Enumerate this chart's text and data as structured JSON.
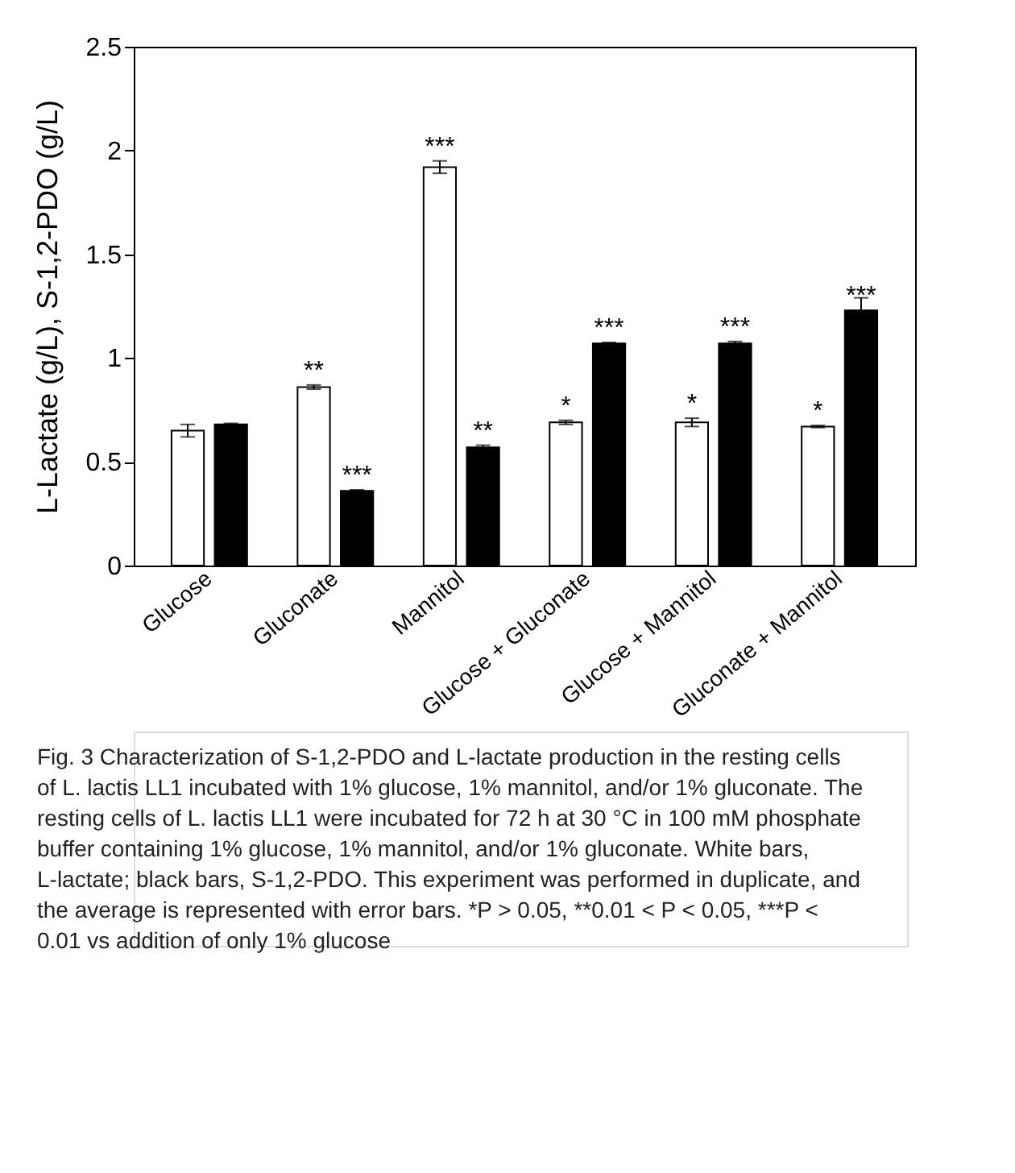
{
  "chart_data": {
    "type": "bar",
    "ylabel": "L-Lactate (g/L), S-1,2-PDO (g/L)",
    "categories": [
      "Glucose",
      "Gluconate",
      "Mannitol",
      "Glucose + Gluconate",
      "Glucose + Mannitol",
      "Gluconate + Mannitol"
    ],
    "series": [
      {
        "color": "#ffffff",
        "values": [
          0.65,
          0.86,
          1.92,
          0.69,
          0.69,
          0.67
        ],
        "errors": [
          0.03,
          0.01,
          0.03,
          0.01,
          0.02,
          0.005
        ]
      },
      {
        "color": "#000000",
        "values": [
          0.68,
          0.36,
          0.57,
          1.07,
          1.07,
          1.23
        ],
        "errors": [
          0.005,
          0.005,
          0.01,
          0.005,
          0.01,
          0.06
        ]
      }
    ],
    "ylim": [
      0,
      2.5
    ],
    "yticks": [
      0,
      0.5,
      1,
      1.5,
      2,
      2.5
    ],
    "grid": false,
    "legend": false,
    "annotations": [
      {
        "text": "**",
        "x": "Gluconate",
        "y": 0.87
      },
      {
        "text": "***",
        "x": "Gluconate",
        "y": 0.365
      },
      {
        "text": "***",
        "x": "Mannitol",
        "y": 1.95
      },
      {
        "text": "**",
        "x": "Mannitol",
        "y": 0.58
      },
      {
        "text": "*",
        "x": "Glucose + Gluconate",
        "y": 0.7
      },
      {
        "text": "***",
        "x": "Glucose + Gluconate",
        "y": 1.075
      },
      {
        "text": "*",
        "x": "Glucose + Mannitol",
        "y": 0.71
      },
      {
        "text": "***",
        "x": "Glucose + Mannitol",
        "y": 1.08
      },
      {
        "text": "*",
        "x": "Gluconate + Mannitol",
        "y": 0.675
      },
      {
        "text": "***",
        "x": "Gluconate + Mannitol",
        "y": 1.23
      },
      "Fig. 3  Characterization of S-1,2-PDO and L-lactate production in the resting cells of L. lactis LL1 incubated with 1% glucose, 1% mannitol, and/or 1% gluconate. The resting cells of L. lactis LL1 were incubated for 72 h at 30 °C in 100 mM phosphate buffer containing 1% glucose, 1% mannitol, and/or 1% gluconate. White bars, L-lactate; black bars, S-1,2-PDO. This experiment was performed in duplicate, and the average is represented with error bars. *P > 0.05, **0.01 < P < 0.05, ***P < 0.01 vs addition of only 1% glucose"
    ]
  }
}
